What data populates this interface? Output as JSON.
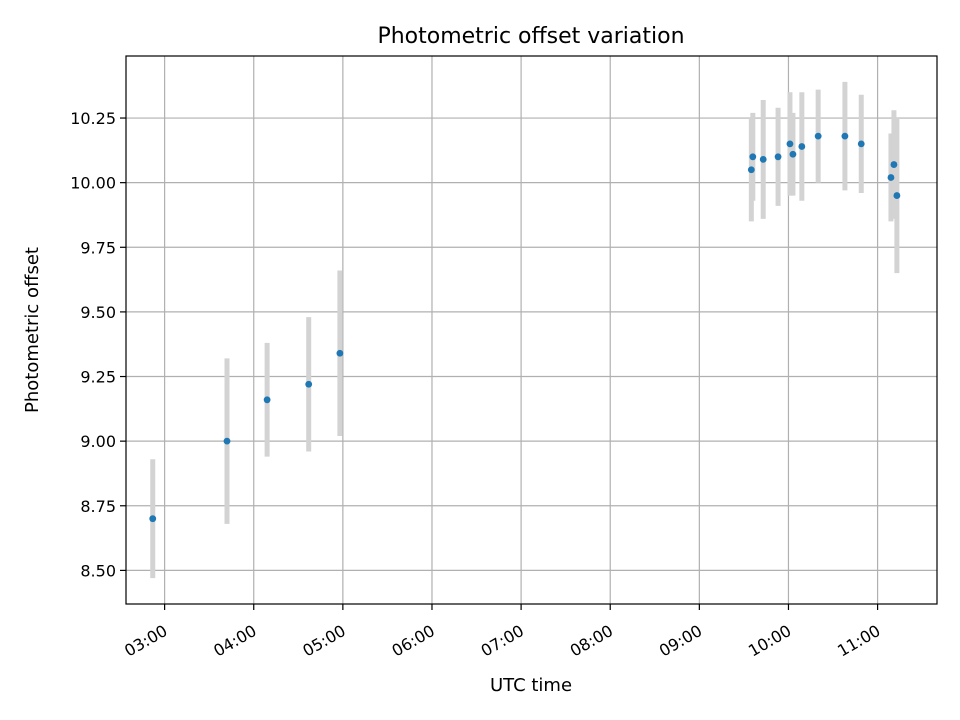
{
  "chart_data": {
    "type": "scatter",
    "title": "Photometric offset variation",
    "xlabel": "UTC time",
    "ylabel": "Photometric offset",
    "x_axis_type": "time",
    "xlim": [
      "02:34",
      "11:40"
    ],
    "ylim": [
      8.37,
      10.49
    ],
    "xticks": [
      "03:00",
      "04:00",
      "05:00",
      "06:00",
      "07:00",
      "08:00",
      "09:00",
      "10:00",
      "11:00"
    ],
    "yticks": [
      8.5,
      8.75,
      9.0,
      9.25,
      9.5,
      9.75,
      10.0,
      10.25
    ],
    "ytick_labels": [
      "8.50",
      "8.75",
      "9.00",
      "9.25",
      "9.50",
      "9.75",
      "10.00",
      "10.25"
    ],
    "grid": true,
    "marker_color": "#1f77b4",
    "errorbar_color": "#d3d3d3",
    "points": [
      {
        "x": "02:52",
        "y": 8.7,
        "yerr": 0.23
      },
      {
        "x": "03:42",
        "y": 9.0,
        "yerr": 0.32
      },
      {
        "x": "04:09",
        "y": 9.16,
        "yerr": 0.22
      },
      {
        "x": "04:37",
        "y": 9.22,
        "yerr": 0.26
      },
      {
        "x": "04:58",
        "y": 9.34,
        "yerr": 0.32
      },
      {
        "x": "09:35",
        "y": 10.05,
        "yerr": 0.2
      },
      {
        "x": "09:36",
        "y": 10.1,
        "yerr": 0.17
      },
      {
        "x": "09:43",
        "y": 10.09,
        "yerr": 0.23
      },
      {
        "x": "09:53",
        "y": 10.1,
        "yerr": 0.19
      },
      {
        "x": "10:01",
        "y": 10.15,
        "yerr": 0.2
      },
      {
        "x": "10:03",
        "y": 10.11,
        "yerr": 0.16
      },
      {
        "x": "10:09",
        "y": 10.14,
        "yerr": 0.21
      },
      {
        "x": "10:20",
        "y": 10.18,
        "yerr": 0.18
      },
      {
        "x": "10:38",
        "y": 10.18,
        "yerr": 0.21
      },
      {
        "x": "10:49",
        "y": 10.15,
        "yerr": 0.19
      },
      {
        "x": "11:09",
        "y": 10.02,
        "yerr": 0.17
      },
      {
        "x": "11:11",
        "y": 10.07,
        "yerr": 0.21
      },
      {
        "x": "11:13",
        "y": 9.95,
        "yerr": 0.3
      }
    ]
  }
}
